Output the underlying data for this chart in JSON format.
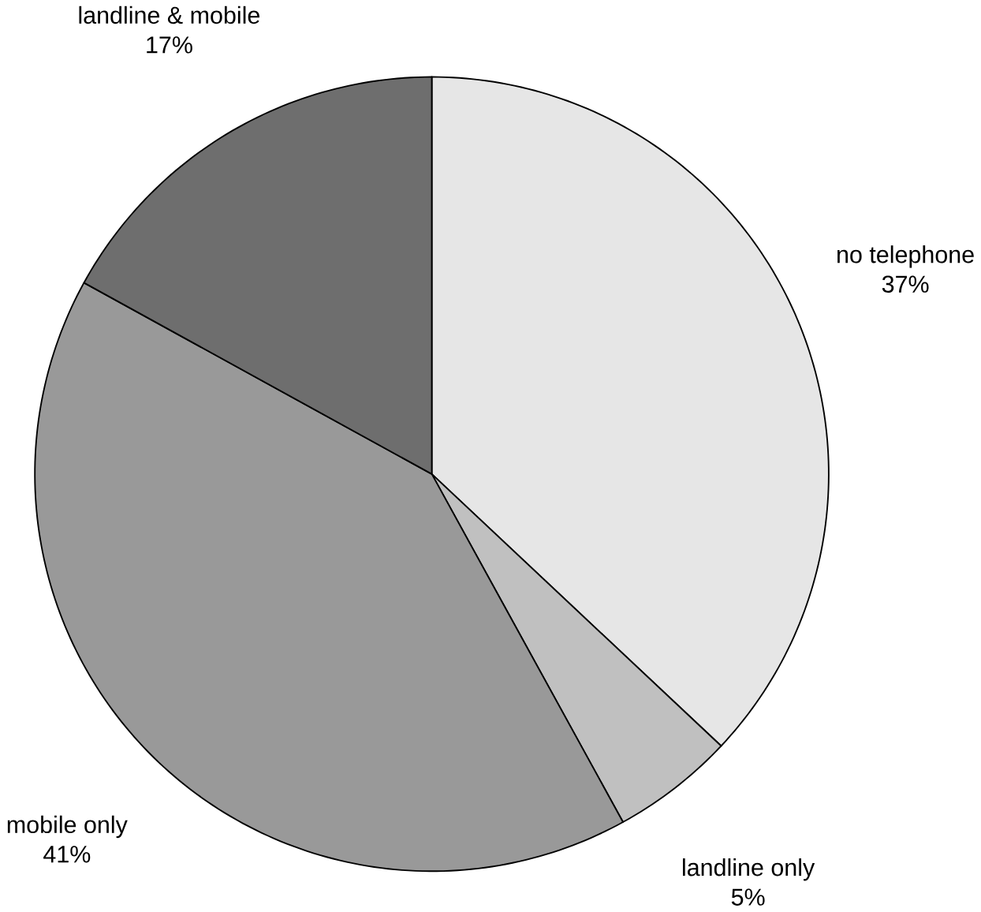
{
  "chart_data": {
    "type": "pie",
    "categories": [
      "no telephone",
      "landline only",
      "mobile only",
      "landline & mobile"
    ],
    "values": [
      37,
      5,
      41,
      17
    ],
    "value_labels": [
      "37%",
      "5%",
      "41%",
      "17%"
    ],
    "colors": [
      "#e6e6e6",
      "#c0c0c0",
      "#999999",
      "#6e6e6e"
    ]
  }
}
